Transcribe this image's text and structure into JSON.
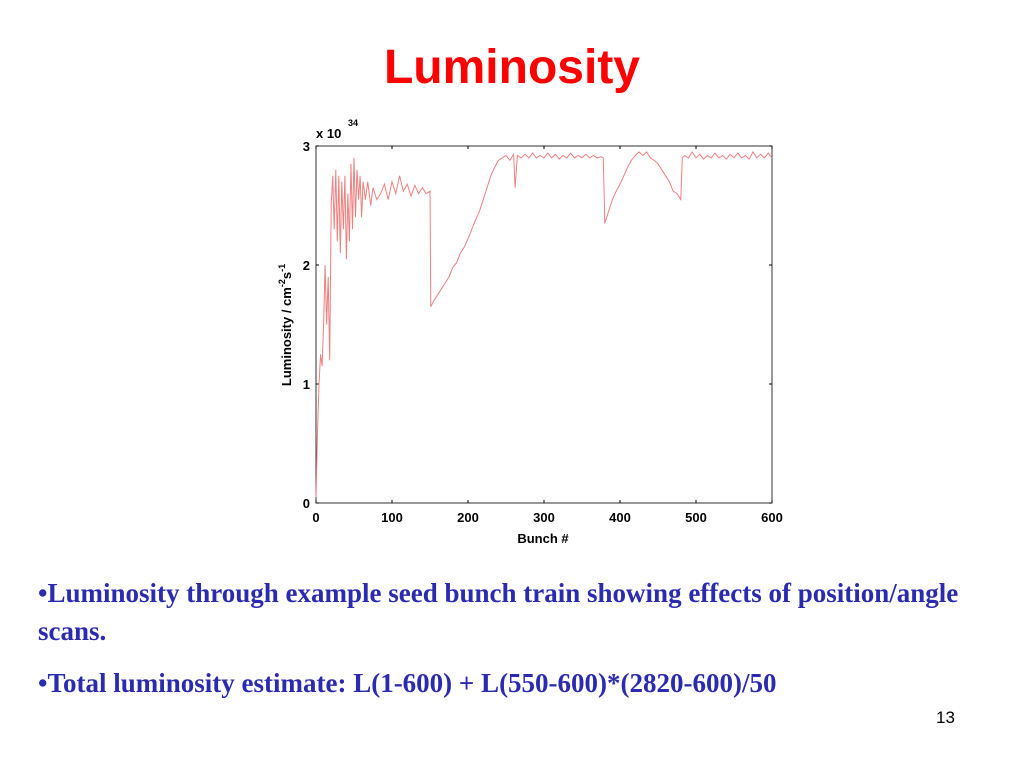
{
  "slide": {
    "title": "Luminosity",
    "page_number": "13"
  },
  "bullets": [
    "•Luminosity through example seed bunch train showing effects of position/angle scans.",
    "•Total luminosity estimate: L(1-600) + L(550-600)*(2820-600)/50"
  ],
  "colors": {
    "title": "#ff0000",
    "bullet_text": "#2b2bb0",
    "series": "#f08080"
  },
  "chart_data": {
    "type": "line",
    "xlabel": "Bunch #",
    "ylabel_parts": [
      "Luminosity / cm",
      "-2",
      "s",
      "-1"
    ],
    "multiplier_base": "x 10",
    "multiplier_exp": "34",
    "xlim": [
      0,
      600
    ],
    "ylim": [
      0,
      3
    ],
    "xticks": [
      0,
      100,
      200,
      300,
      400,
      500,
      600
    ],
    "yticks": [
      0,
      1,
      2,
      3
    ],
    "grid": false,
    "series": [
      {
        "points": [
          [
            0,
            0.05
          ],
          [
            2,
            0.6
          ],
          [
            4,
            1.0
          ],
          [
            6,
            1.25
          ],
          [
            8,
            1.15
          ],
          [
            10,
            1.5
          ],
          [
            12,
            2.0
          ],
          [
            14,
            1.5
          ],
          [
            16,
            1.9
          ],
          [
            18,
            1.2
          ],
          [
            20,
            2.5
          ],
          [
            22,
            2.75
          ],
          [
            24,
            2.3
          ],
          [
            26,
            2.8
          ],
          [
            28,
            2.2
          ],
          [
            30,
            2.75
          ],
          [
            32,
            2.1
          ],
          [
            34,
            2.7
          ],
          [
            36,
            2.3
          ],
          [
            38,
            2.75
          ],
          [
            40,
            2.05
          ],
          [
            42,
            2.6
          ],
          [
            44,
            2.2
          ],
          [
            46,
            2.85
          ],
          [
            48,
            2.3
          ],
          [
            50,
            2.9
          ],
          [
            52,
            2.4
          ],
          [
            54,
            2.8
          ],
          [
            56,
            2.55
          ],
          [
            58,
            2.75
          ],
          [
            60,
            2.4
          ],
          [
            62,
            2.7
          ],
          [
            65,
            2.55
          ],
          [
            68,
            2.7
          ],
          [
            72,
            2.5
          ],
          [
            75,
            2.65
          ],
          [
            80,
            2.55
          ],
          [
            85,
            2.6
          ],
          [
            90,
            2.68
          ],
          [
            95,
            2.55
          ],
          [
            100,
            2.7
          ],
          [
            105,
            2.6
          ],
          [
            110,
            2.75
          ],
          [
            115,
            2.62
          ],
          [
            120,
            2.68
          ],
          [
            125,
            2.58
          ],
          [
            130,
            2.67
          ],
          [
            135,
            2.6
          ],
          [
            140,
            2.65
          ],
          [
            145,
            2.6
          ],
          [
            150,
            2.62
          ],
          [
            151,
            1.65
          ],
          [
            155,
            1.7
          ],
          [
            160,
            1.75
          ],
          [
            165,
            1.8
          ],
          [
            170,
            1.85
          ],
          [
            175,
            1.9
          ],
          [
            180,
            1.98
          ],
          [
            185,
            2.02
          ],
          [
            190,
            2.1
          ],
          [
            195,
            2.15
          ],
          [
            200,
            2.22
          ],
          [
            205,
            2.3
          ],
          [
            210,
            2.38
          ],
          [
            215,
            2.45
          ],
          [
            220,
            2.55
          ],
          [
            225,
            2.65
          ],
          [
            230,
            2.75
          ],
          [
            235,
            2.82
          ],
          [
            240,
            2.88
          ],
          [
            245,
            2.9
          ],
          [
            250,
            2.92
          ],
          [
            255,
            2.88
          ],
          [
            260,
            2.93
          ],
          [
            262,
            2.65
          ],
          [
            265,
            2.92
          ],
          [
            270,
            2.9
          ],
          [
            275,
            2.93
          ],
          [
            280,
            2.9
          ],
          [
            285,
            2.94
          ],
          [
            290,
            2.9
          ],
          [
            295,
            2.92
          ],
          [
            300,
            2.9
          ],
          [
            305,
            2.94
          ],
          [
            310,
            2.9
          ],
          [
            315,
            2.93
          ],
          [
            320,
            2.89
          ],
          [
            325,
            2.92
          ],
          [
            330,
            2.9
          ],
          [
            335,
            2.94
          ],
          [
            340,
            2.9
          ],
          [
            345,
            2.92
          ],
          [
            350,
            2.9
          ],
          [
            355,
            2.93
          ],
          [
            360,
            2.9
          ],
          [
            365,
            2.92
          ],
          [
            370,
            2.9
          ],
          [
            375,
            2.91
          ],
          [
            378,
            2.9
          ],
          [
            380,
            2.35
          ],
          [
            385,
            2.45
          ],
          [
            390,
            2.55
          ],
          [
            395,
            2.62
          ],
          [
            400,
            2.68
          ],
          [
            405,
            2.75
          ],
          [
            410,
            2.82
          ],
          [
            415,
            2.88
          ],
          [
            420,
            2.92
          ],
          [
            425,
            2.95
          ],
          [
            430,
            2.92
          ],
          [
            435,
            2.95
          ],
          [
            440,
            2.9
          ],
          [
            445,
            2.88
          ],
          [
            450,
            2.85
          ],
          [
            455,
            2.8
          ],
          [
            460,
            2.75
          ],
          [
            465,
            2.7
          ],
          [
            470,
            2.62
          ],
          [
            475,
            2.6
          ],
          [
            480,
            2.55
          ],
          [
            482,
            2.9
          ],
          [
            485,
            2.92
          ],
          [
            490,
            2.9
          ],
          [
            495,
            2.95
          ],
          [
            500,
            2.9
          ],
          [
            505,
            2.93
          ],
          [
            510,
            2.89
          ],
          [
            515,
            2.92
          ],
          [
            520,
            2.9
          ],
          [
            525,
            2.94
          ],
          [
            530,
            2.9
          ],
          [
            535,
            2.92
          ],
          [
            540,
            2.89
          ],
          [
            545,
            2.93
          ],
          [
            550,
            2.9
          ],
          [
            555,
            2.94
          ],
          [
            560,
            2.9
          ],
          [
            565,
            2.92
          ],
          [
            570,
            2.89
          ],
          [
            575,
            2.95
          ],
          [
            580,
            2.9
          ],
          [
            585,
            2.93
          ],
          [
            590,
            2.9
          ],
          [
            595,
            2.94
          ],
          [
            600,
            2.9
          ]
        ]
      }
    ]
  }
}
